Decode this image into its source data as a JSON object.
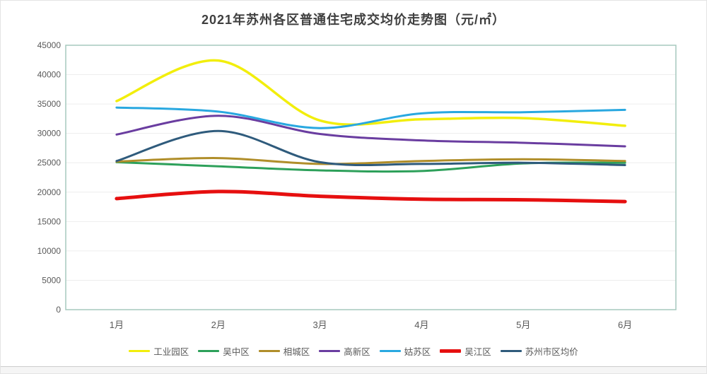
{
  "page": {
    "title": "2021年苏州各区普通住宅成交均价走势图（元/㎡）"
  },
  "chart_data": {
    "type": "line",
    "title": "2021年苏州各区普通住宅成交均价走势图（元/㎡）",
    "categories": [
      "1月",
      "2月",
      "3月",
      "4月",
      "5月",
      "6月"
    ],
    "series": [
      {
        "name": "工业园区",
        "color": "#f2ee0c",
        "width": 3.5,
        "values": [
          35500,
          42400,
          32200,
          32400,
          32600,
          31300
        ]
      },
      {
        "name": "吴中区",
        "color": "#2da05a",
        "width": 3,
        "values": [
          25100,
          24400,
          23700,
          23600,
          24900,
          25000
        ]
      },
      {
        "name": "相城区",
        "color": "#b08e2a",
        "width": 3,
        "values": [
          25200,
          25800,
          24800,
          25300,
          25600,
          25300
        ]
      },
      {
        "name": "高新区",
        "color": "#6a3da0",
        "width": 3,
        "values": [
          29800,
          33000,
          29900,
          28800,
          28400,
          27800
        ]
      },
      {
        "name": "姑苏区",
        "color": "#29a8e0",
        "width": 3,
        "values": [
          34400,
          33700,
          30900,
          33400,
          33600,
          34000
        ]
      },
      {
        "name": "吴江区",
        "color": "#e60f0f",
        "width": 5,
        "values": [
          18900,
          20100,
          19300,
          18800,
          18700,
          18400
        ]
      },
      {
        "name": "苏州市区均价",
        "color": "#2f5b7c",
        "width": 3,
        "values": [
          25300,
          30400,
          25100,
          24800,
          25000,
          24600
        ]
      }
    ],
    "ylim": [
      0,
      45000
    ],
    "ytick_step": 5000,
    "grid": true,
    "smooth": true,
    "legend_position": "bottom",
    "xlabel": "",
    "ylabel": ""
  },
  "colors": {
    "plot_border": "#a6c9bd",
    "gridline": "#ededed",
    "axis_text": "#595959",
    "title_text": "#3f3f3f",
    "page_border": "#e4e4e4",
    "divider": "#cccccc",
    "footer_bg": "#f5f5f5"
  }
}
